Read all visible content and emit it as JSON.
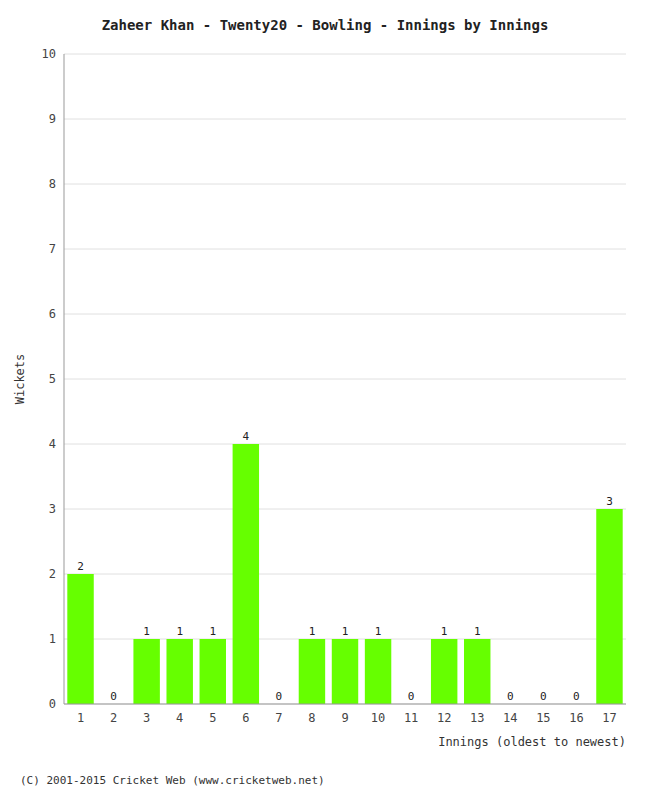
{
  "chart_data": {
    "type": "bar",
    "title": "Zaheer Khan - Twenty20 - Bowling - Innings by Innings",
    "x_label": "Innings (oldest to newest)",
    "y_label": "Wickets",
    "categories": [
      1,
      2,
      3,
      4,
      5,
      6,
      7,
      8,
      9,
      10,
      11,
      12,
      13,
      14,
      15,
      16,
      17
    ],
    "values": [
      2,
      0,
      1,
      1,
      1,
      4,
      0,
      1,
      1,
      1,
      0,
      1,
      1,
      0,
      0,
      0,
      3
    ],
    "color": "#66ff00",
    "ylim": [
      0,
      10
    ],
    "yticks": [
      0,
      1,
      2,
      3,
      4,
      5,
      6,
      7,
      8,
      9,
      10
    ],
    "grid": true,
    "data_labels": true,
    "annotations": [
      "(C) 2001-2015 Cricket Web (www.cricketweb.net)"
    ]
  }
}
